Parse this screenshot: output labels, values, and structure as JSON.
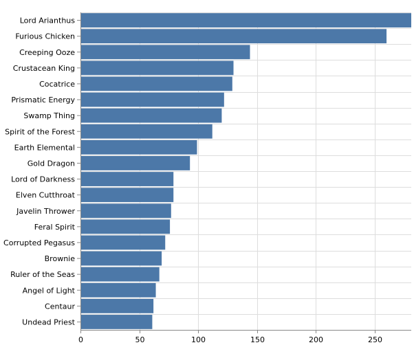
{
  "chart_data": {
    "type": "bar",
    "orientation": "horizontal",
    "title": "",
    "xlabel": "",
    "ylabel": "",
    "xlim": [
      0,
      281
    ],
    "xticks": [
      0,
      50,
      100,
      150,
      200,
      250
    ],
    "grid": true,
    "legend": "none",
    "bar_color": "#4c78a8",
    "categories": [
      "Lord Arianthus",
      "Furious Chicken",
      "Creeping Ooze",
      "Crustacean King",
      "Cocatrice",
      "Prismatic Energy",
      "Swamp Thing",
      "Spirit of the Forest",
      "Earth Elemental",
      "Gold Dragon",
      "Lord of Darkness",
      "Elven Cutthroat",
      "Javelin Thrower",
      "Feral Spirit",
      "Corrupted Pegasus",
      "Brownie",
      "Ruler of the Seas",
      "Angel of Light",
      "Centaur",
      "Undead Priest"
    ],
    "values": [
      281,
      260,
      144,
      130,
      129,
      122,
      120,
      112,
      99,
      93,
      79,
      79,
      77,
      76,
      72,
      69,
      67,
      64,
      62,
      61
    ]
  }
}
